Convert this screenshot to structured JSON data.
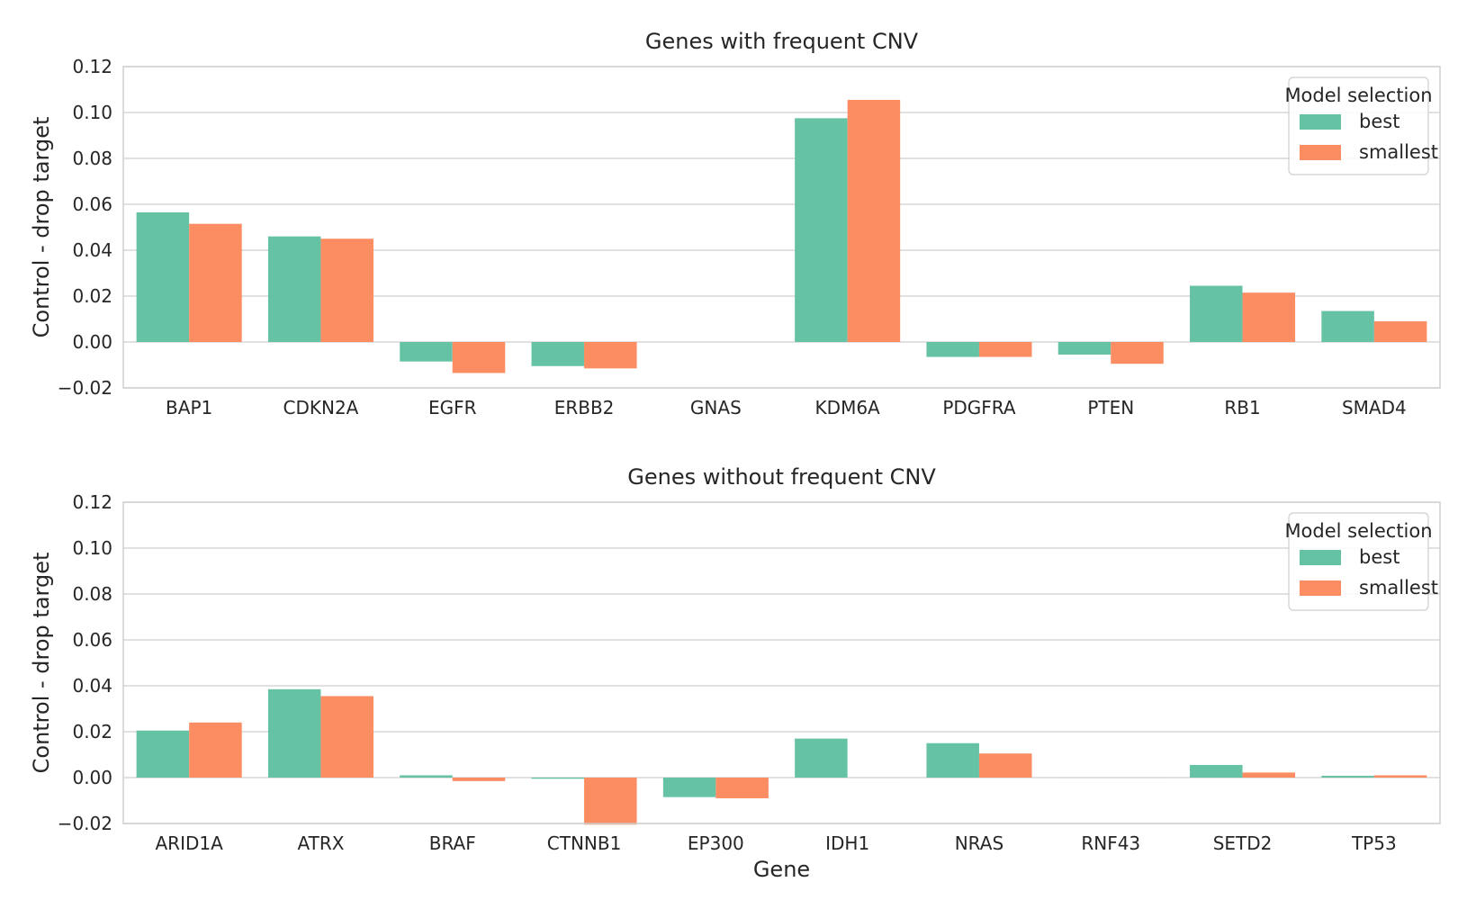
{
  "chart_data": [
    {
      "type": "bar",
      "title": "Genes with frequent CNV",
      "xlabel": "",
      "ylabel": "Control - drop target",
      "ylim": [
        -0.02,
        0.12
      ],
      "yticks": [
        "−0.02",
        "0.00",
        "0.02",
        "0.04",
        "0.06",
        "0.08",
        "0.10",
        "0.12"
      ],
      "grid": true,
      "legend": {
        "title": "Model selection",
        "placement": "top-right"
      },
      "categories": [
        "BAP1",
        "CDKN2A",
        "EGFR",
        "ERBB2",
        "GNAS",
        "KDM6A",
        "PDGFRA",
        "PTEN",
        "RB1",
        "SMAD4"
      ],
      "series": [
        {
          "name": "best",
          "color": "#66c2a5",
          "values": [
            0.0565,
            0.046,
            -0.0085,
            -0.0105,
            0.0,
            0.0975,
            -0.0065,
            -0.0055,
            0.0245,
            0.0135
          ]
        },
        {
          "name": "smallest",
          "color": "#fc8d62",
          "values": [
            0.0515,
            0.045,
            -0.0135,
            -0.0115,
            0.0,
            0.1055,
            -0.0065,
            -0.0095,
            0.0215,
            0.009
          ]
        }
      ]
    },
    {
      "type": "bar",
      "title": "Genes without frequent CNV",
      "xlabel": "Gene",
      "ylabel": "Control - drop target",
      "ylim": [
        -0.02,
        0.12
      ],
      "yticks": [
        "−0.02",
        "0.00",
        "0.02",
        "0.04",
        "0.06",
        "0.08",
        "0.10",
        "0.12"
      ],
      "grid": true,
      "legend": {
        "title": "Model selection",
        "placement": "top-right"
      },
      "categories": [
        "ARID1A",
        "ATRX",
        "BRAF",
        "CTNNB1",
        "EP300",
        "IDH1",
        "NRAS",
        "RNF43",
        "SETD2",
        "TP53"
      ],
      "series": [
        {
          "name": "best",
          "color": "#66c2a5",
          "values": [
            0.0205,
            0.0385,
            0.001,
            -0.0005,
            -0.0085,
            0.017,
            0.015,
            0.0,
            0.0055,
            0.0008
          ]
        },
        {
          "name": "smallest",
          "color": "#fc8d62",
          "values": [
            0.024,
            0.0355,
            -0.0015,
            -0.0205,
            -0.009,
            0.0,
            0.0105,
            0.0,
            0.0022,
            0.001
          ]
        }
      ]
    }
  ]
}
